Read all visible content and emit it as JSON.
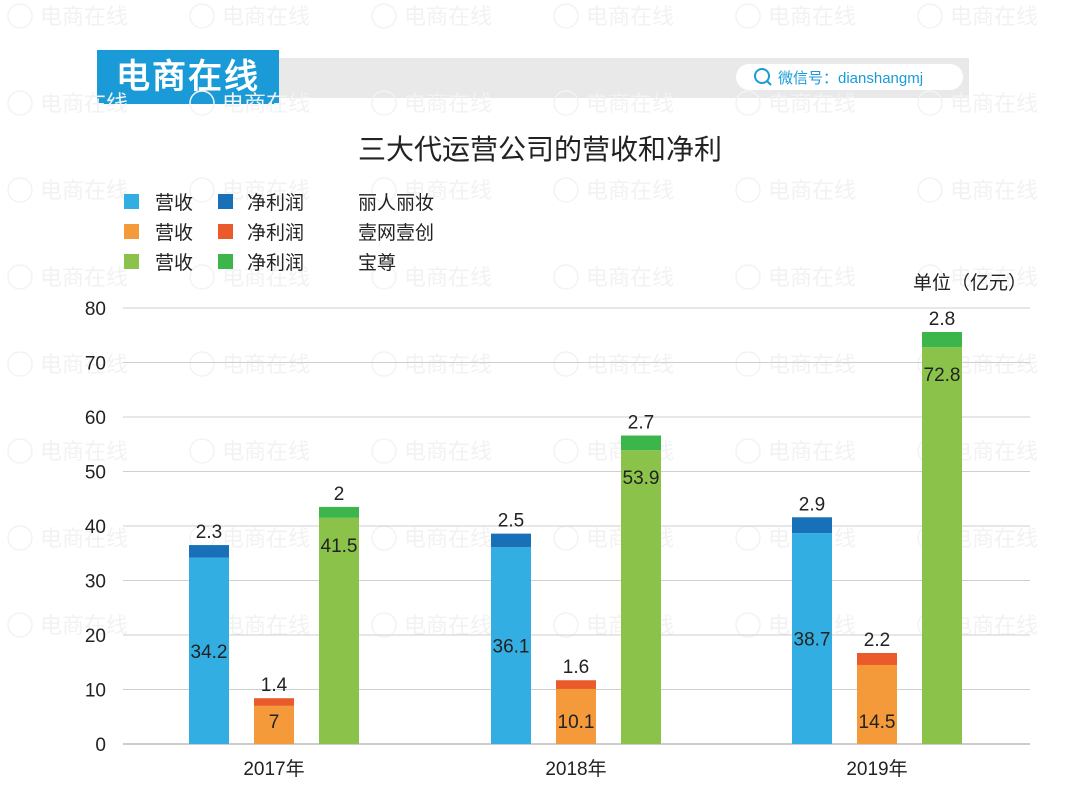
{
  "header": {
    "logo": "电商在线",
    "wechat_label": "微信号：dianshangmj",
    "watermark": "电商在线"
  },
  "chart_data": {
    "type": "bar",
    "stacked": true,
    "title": "三大代运营公司的营收和净利",
    "unit_label": "单位（亿元）",
    "categories": [
      "2017年",
      "2018年",
      "2019年"
    ],
    "ylim": [
      0,
      80
    ],
    "yticks": [
      0,
      10,
      20,
      30,
      40,
      50,
      60,
      70,
      80
    ],
    "grid": true,
    "legend_position": "top-left",
    "series": [
      {
        "name": "丽人丽妆",
        "revenue_label": "营收",
        "profit_label": "净利润",
        "revenue": [
          34.2,
          36.1,
          38.7
        ],
        "profit": [
          2.3,
          2.5,
          2.9
        ],
        "revenue_color": "#33aee3",
        "profit_color": "#1770b8"
      },
      {
        "name": "壹网壹创",
        "revenue_label": "营收",
        "profit_label": "净利润",
        "revenue": [
          7,
          10.1,
          14.5
        ],
        "profit": [
          1.4,
          1.6,
          2.2
        ],
        "revenue_color": "#f59a3a",
        "profit_color": "#ea5a2a"
      },
      {
        "name": "宝尊",
        "revenue_label": "营收",
        "profit_label": "净利润",
        "revenue": [
          41.5,
          53.9,
          72.8
        ],
        "profit": [
          2,
          2.7,
          2.8
        ],
        "revenue_color": "#8bc34a",
        "profit_color": "#3cb54a"
      }
    ]
  }
}
